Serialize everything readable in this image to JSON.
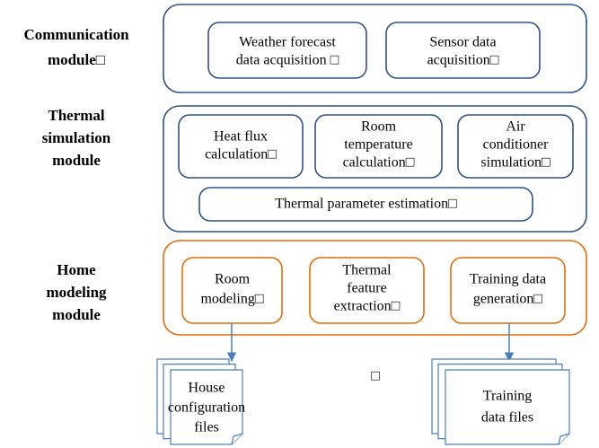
{
  "modules": [
    {
      "label": [
        "Communication",
        "module□"
      ],
      "components": [
        {
          "lines": [
            "Weather forecast",
            "data acquisition □"
          ]
        },
        {
          "lines": [
            "Sensor data",
            "acquisition□"
          ]
        }
      ]
    },
    {
      "label": [
        "Thermal",
        "simulation",
        "module"
      ],
      "components": [
        {
          "lines": [
            "Heat flux",
            "calculation□"
          ]
        },
        {
          "lines": [
            "Room",
            "temperature",
            "calculation□"
          ]
        },
        {
          "lines": [
            "Air",
            "conditioner",
            "simulation□"
          ]
        },
        {
          "lines": [
            "Thermal parameter estimation□"
          ]
        }
      ]
    },
    {
      "label": [
        "Home",
        "modeling",
        "module"
      ],
      "components": [
        {
          "lines": [
            "Room",
            "modeling□"
          ]
        },
        {
          "lines": [
            "Thermal",
            "feature",
            "extraction□"
          ]
        },
        {
          "lines": [
            "Training data",
            "generation□"
          ]
        }
      ]
    }
  ],
  "files": [
    {
      "lines": [
        "House",
        "configuration",
        "files"
      ]
    },
    {
      "lines": [
        "Training",
        "data files"
      ]
    }
  ],
  "stray": "□"
}
